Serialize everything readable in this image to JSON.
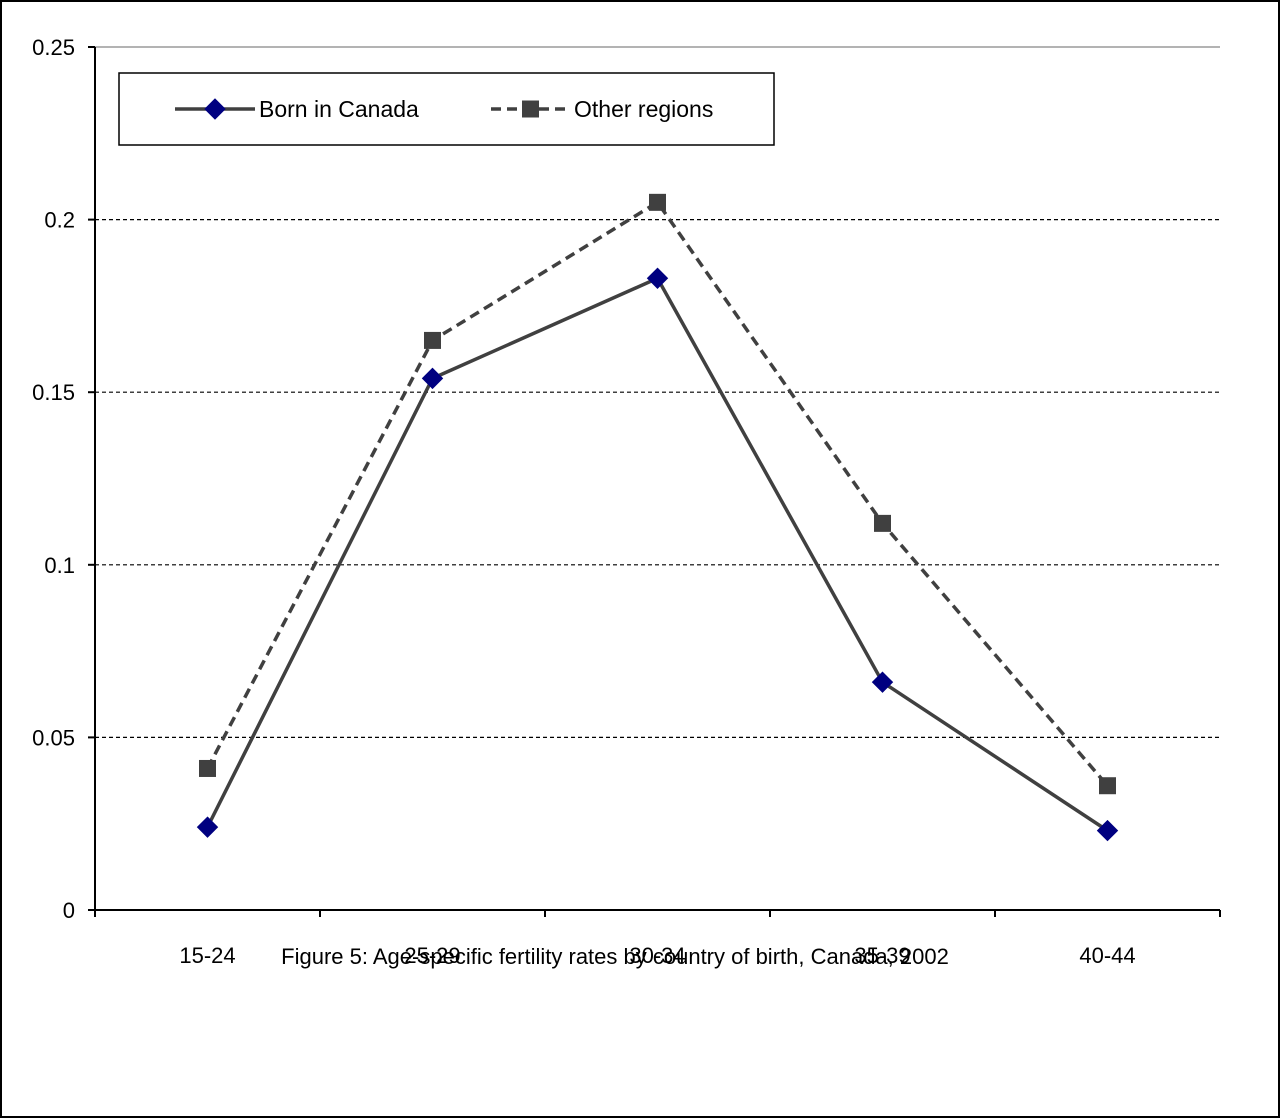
{
  "chart_data": {
    "type": "line",
    "categories": [
      "15-24",
      "25-29",
      "30-34",
      "35-39",
      "40-44"
    ],
    "series": [
      {
        "name": "Born in Canada",
        "values": [
          0.024,
          0.154,
          0.183,
          0.066,
          0.023
        ],
        "color": "#000080",
        "line_color": "#404040",
        "marker": "diamond",
        "line_style": "solid"
      },
      {
        "name": "Other regions",
        "values": [
          0.041,
          0.165,
          0.205,
          0.112,
          0.036
        ],
        "color": "#404040",
        "line_color": "#404040",
        "marker": "square",
        "line_style": "dashed"
      }
    ],
    "ylim": [
      0,
      0.25
    ],
    "yticks": [
      "0",
      "0.05",
      "0.1",
      "0.15",
      "0.2",
      "0.25"
    ],
    "ytick_values": [
      0,
      0.05,
      0.1,
      0.15,
      0.2,
      0.25
    ],
    "grid": "horizontal dashed",
    "legend_position": "top-left",
    "caption": "Figure 5: Age-specific fertility rates by country of birth, Canada, 2002"
  }
}
